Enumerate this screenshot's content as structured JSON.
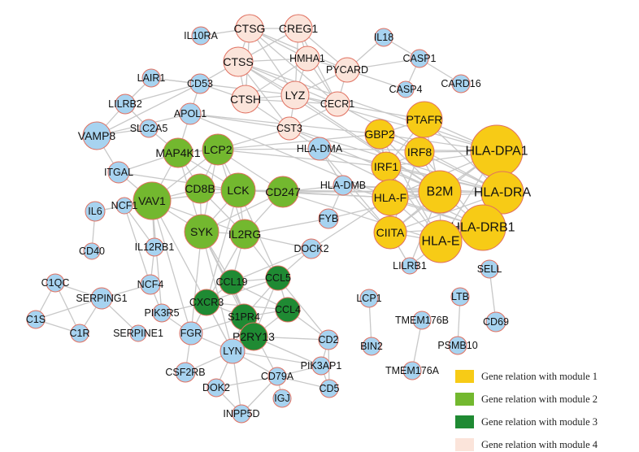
{
  "colors": {
    "module1": "#f7cb16",
    "module2": "#73b82f",
    "module3": "#1f8a33",
    "module4": "#fbe4da",
    "other": "#a7d3f0",
    "outline": "#e07060",
    "edge": "#c8c8c8"
  },
  "legend": [
    {
      "module": "module1",
      "label": "Gene  relation  with  module 1"
    },
    {
      "module": "module2",
      "label": "Gene  relation  with  module 2"
    },
    {
      "module": "module3",
      "label": "Gene  relation  with  module 3"
    },
    {
      "module": "module4",
      "label": "Gene  relation  with  module 4"
    }
  ],
  "nodes": [
    {
      "id": "CTSG",
      "module": "module4"
    },
    {
      "id": "CREG1",
      "module": "module4"
    },
    {
      "id": "CTSS",
      "module": "module4"
    },
    {
      "id": "HMHA1",
      "module": "module4"
    },
    {
      "id": "PYCARD",
      "module": "module4"
    },
    {
      "id": "CTSH",
      "module": "module4"
    },
    {
      "id": "LYZ",
      "module": "module4"
    },
    {
      "id": "CECR1",
      "module": "module4"
    },
    {
      "id": "CST3",
      "module": "module4"
    },
    {
      "id": "PTAFR",
      "module": "module1"
    },
    {
      "id": "GBP2",
      "module": "module1"
    },
    {
      "id": "IRF8",
      "module": "module1"
    },
    {
      "id": "HLA-DPA1",
      "module": "module1"
    },
    {
      "id": "IRF1",
      "module": "module1"
    },
    {
      "id": "B2M",
      "module": "module1"
    },
    {
      "id": "HLA-DRA",
      "module": "module1"
    },
    {
      "id": "HLA-F",
      "module": "module1"
    },
    {
      "id": "HLA-DRB1",
      "module": "module1"
    },
    {
      "id": "CIITA",
      "module": "module1"
    },
    {
      "id": "HLA-E",
      "module": "module1"
    },
    {
      "id": "MAP4K1",
      "module": "module2"
    },
    {
      "id": "LCP2",
      "module": "module2"
    },
    {
      "id": "CD8B",
      "module": "module2"
    },
    {
      "id": "LCK",
      "module": "module2"
    },
    {
      "id": "CD247",
      "module": "module2"
    },
    {
      "id": "VAV1",
      "module": "module2"
    },
    {
      "id": "SYK",
      "module": "module2"
    },
    {
      "id": "IL2RG",
      "module": "module2"
    },
    {
      "id": "CCL19",
      "module": "module3"
    },
    {
      "id": "CCL5",
      "module": "module3"
    },
    {
      "id": "CXCR3",
      "module": "module3"
    },
    {
      "id": "S1PR4",
      "module": "module3"
    },
    {
      "id": "CCL4",
      "module": "module3"
    },
    {
      "id": "P2RY13",
      "module": "module3"
    },
    {
      "id": "IL10RA",
      "module": "other"
    },
    {
      "id": "IL18",
      "module": "other"
    },
    {
      "id": "CASP1",
      "module": "other"
    },
    {
      "id": "CASP4",
      "module": "other"
    },
    {
      "id": "CARD16",
      "module": "other"
    },
    {
      "id": "LAIR1",
      "module": "other"
    },
    {
      "id": "CD53",
      "module": "other"
    },
    {
      "id": "LILRB2",
      "module": "other"
    },
    {
      "id": "APOL1",
      "module": "other"
    },
    {
      "id": "VAMP8",
      "module": "other"
    },
    {
      "id": "SLC2A5",
      "module": "other"
    },
    {
      "id": "ITGAL",
      "module": "other"
    },
    {
      "id": "HLA-DMA",
      "module": "other"
    },
    {
      "id": "HLA-DMB",
      "module": "other"
    },
    {
      "id": "IL6",
      "module": "other"
    },
    {
      "id": "NCF1",
      "module": "other"
    },
    {
      "id": "FYB",
      "module": "other"
    },
    {
      "id": "CD40",
      "module": "other"
    },
    {
      "id": "IL12RB1",
      "module": "other"
    },
    {
      "id": "DOCK2",
      "module": "other"
    },
    {
      "id": "LILRB1",
      "module": "other"
    },
    {
      "id": "SELL",
      "module": "other"
    },
    {
      "id": "C1QC",
      "module": "other"
    },
    {
      "id": "SERPING1",
      "module": "other"
    },
    {
      "id": "NCF4",
      "module": "other"
    },
    {
      "id": "PIK3R5",
      "module": "other"
    },
    {
      "id": "C1S",
      "module": "other"
    },
    {
      "id": "C1R",
      "module": "other"
    },
    {
      "id": "SERPINE1",
      "module": "other"
    },
    {
      "id": "FGR",
      "module": "other"
    },
    {
      "id": "LCP1",
      "module": "other"
    },
    {
      "id": "LTB",
      "module": "other"
    },
    {
      "id": "TMEM176B",
      "module": "other"
    },
    {
      "id": "CD69",
      "module": "other"
    },
    {
      "id": "BIN2",
      "module": "other"
    },
    {
      "id": "PSMB10",
      "module": "other"
    },
    {
      "id": "TMEM176A",
      "module": "other"
    },
    {
      "id": "LYN",
      "module": "other"
    },
    {
      "id": "CD2",
      "module": "other"
    },
    {
      "id": "CSF2RB",
      "module": "other"
    },
    {
      "id": "CD79A",
      "module": "other"
    },
    {
      "id": "PIK3AP1",
      "module": "other"
    },
    {
      "id": "CD5",
      "module": "other"
    },
    {
      "id": "DOK2",
      "module": "other"
    },
    {
      "id": "IGJ",
      "module": "other"
    },
    {
      "id": "INPP5D",
      "module": "other"
    }
  ],
  "edges": [
    [
      "CTSG",
      "CTSS"
    ],
    [
      "CTSG",
      "HMHA1"
    ],
    [
      "CTSG",
      "CREG1"
    ],
    [
      "CTSG",
      "LYZ"
    ],
    [
      "CTSG",
      "CECR1"
    ],
    [
      "CTSG",
      "CTSH"
    ],
    [
      "CTSG",
      "IL10RA"
    ],
    [
      "CTSG",
      "PYCARD"
    ],
    [
      "CREG1",
      "HMHA1"
    ],
    [
      "CREG1",
      "PYCARD"
    ],
    [
      "CREG1",
      "CTSS"
    ],
    [
      "CREG1",
      "LYZ"
    ],
    [
      "CREG1",
      "CECR1"
    ],
    [
      "CTSS",
      "HMHA1"
    ],
    [
      "CTSS",
      "CTSH"
    ],
    [
      "CTSS",
      "LYZ"
    ],
    [
      "CTSS",
      "CECR1"
    ],
    [
      "CTSS",
      "CD53"
    ],
    [
      "CTSS",
      "CST3"
    ],
    [
      "CTSS",
      "HLA-DPA1"
    ],
    [
      "CTSS",
      "B2M"
    ],
    [
      "HMHA1",
      "LYZ"
    ],
    [
      "HMHA1",
      "CTSH"
    ],
    [
      "HMHA1",
      "PYCARD"
    ],
    [
      "HMHA1",
      "CECR1"
    ],
    [
      "PYCARD",
      "CECR1"
    ],
    [
      "PYCARD",
      "CASP1"
    ],
    [
      "PYCARD",
      "CASP4"
    ],
    [
      "PYCARD",
      "IL18"
    ],
    [
      "PYCARD",
      "LYZ"
    ],
    [
      "IL18",
      "CASP1"
    ],
    [
      "CASP1",
      "CASP4"
    ],
    [
      "CASP1",
      "CARD16"
    ],
    [
      "CTSH",
      "LYZ"
    ],
    [
      "CTSH",
      "CECR1"
    ],
    [
      "CTSH",
      "CST3"
    ],
    [
      "CTSH",
      "CD53"
    ],
    [
      "LYZ",
      "CECR1"
    ],
    [
      "LYZ",
      "CST3"
    ],
    [
      "LYZ",
      "HLA-DPA1"
    ],
    [
      "LYZ",
      "B2M"
    ],
    [
      "LYZ",
      "LAIR1"
    ],
    [
      "CECR1",
      "PTAFR"
    ],
    [
      "CECR1",
      "HLA-DRA"
    ],
    [
      "CECR1",
      "CST3"
    ],
    [
      "CST3",
      "APOL1"
    ],
    [
      "CST3",
      "HLA-DRA"
    ],
    [
      "CST3",
      "B2M"
    ],
    [
      "CST3",
      "LCP2"
    ],
    [
      "CST3",
      "HLA-DMA"
    ],
    [
      "LAIR1",
      "CD53"
    ],
    [
      "LAIR1",
      "LILRB2"
    ],
    [
      "CD53",
      "LILRB2"
    ],
    [
      "CD53",
      "APOL1"
    ],
    [
      "CD53",
      "VAMP8"
    ],
    [
      "LILRB2",
      "VAMP8"
    ],
    [
      "LILRB2",
      "SLC2A5"
    ],
    [
      "VAMP8",
      "SLC2A5"
    ],
    [
      "VAMP8",
      "ITGAL"
    ],
    [
      "VAMP8",
      "APOL1"
    ],
    [
      "SLC2A5",
      "MAP4K1"
    ],
    [
      "APOL1",
      "HLA-F"
    ],
    [
      "APOL1",
      "MAP4K1"
    ],
    [
      "APOL1",
      "GBP2"
    ],
    [
      "ITGAL",
      "MAP4K1"
    ],
    [
      "ITGAL",
      "VAV1"
    ],
    [
      "ITGAL",
      "LCK"
    ],
    [
      "MAP4K1",
      "LCP2"
    ],
    [
      "MAP4K1",
      "VAV1"
    ],
    [
      "MAP4K1",
      "LCK"
    ],
    [
      "MAP4K1",
      "CD8B"
    ],
    [
      "MAP4K1",
      "SYK"
    ],
    [
      "LCP2",
      "LCK"
    ],
    [
      "LCP2",
      "CD8B"
    ],
    [
      "LCP2",
      "CD247"
    ],
    [
      "LCP2",
      "VAV1"
    ],
    [
      "LCP2",
      "SYK"
    ],
    [
      "LCP2",
      "IL2RG"
    ],
    [
      "LCP2",
      "GBP2"
    ],
    [
      "LCP2",
      "HLA-DMA"
    ],
    [
      "LCP2",
      "IRF1"
    ],
    [
      "CD8B",
      "LCK"
    ],
    [
      "CD8B",
      "VAV1"
    ],
    [
      "CD8B",
      "CD247"
    ],
    [
      "CD8B",
      "SYK"
    ],
    [
      "CD8B",
      "IL2RG"
    ],
    [
      "LCK",
      "CD247"
    ],
    [
      "LCK",
      "VAV1"
    ],
    [
      "LCK",
      "SYK"
    ],
    [
      "LCK",
      "IL2RG"
    ],
    [
      "LCK",
      "HLA-F"
    ],
    [
      "LCK",
      "B2M"
    ],
    [
      "LCK",
      "CCL5"
    ],
    [
      "LCK",
      "CXCR3"
    ],
    [
      "CD247",
      "IL2RG"
    ],
    [
      "CD247",
      "SYK"
    ],
    [
      "CD247",
      "HLA-DMB"
    ],
    [
      "CD247",
      "HLA-F"
    ],
    [
      "CD247",
      "B2M"
    ],
    [
      "VAV1",
      "SYK"
    ],
    [
      "VAV1",
      "IL2RG"
    ],
    [
      "VAV1",
      "IL6"
    ],
    [
      "VAV1",
      "NCF1"
    ],
    [
      "VAV1",
      "IL12RB1"
    ],
    [
      "VAV1",
      "PIK3R5"
    ],
    [
      "VAV1",
      "FGR"
    ],
    [
      "VAV1",
      "LYN"
    ],
    [
      "SYK",
      "IL2RG"
    ],
    [
      "SYK",
      "LYN"
    ],
    [
      "SYK",
      "FGR"
    ],
    [
      "SYK",
      "CCL19"
    ],
    [
      "SYK",
      "S1PR4"
    ],
    [
      "SYK",
      "CD79A"
    ],
    [
      "IL2RG",
      "CCL19"
    ],
    [
      "IL2RG",
      "CCL5"
    ],
    [
      "IL2RG",
      "CXCR3"
    ],
    [
      "IL2RG",
      "DOCK2"
    ],
    [
      "IL6",
      "NCF1"
    ],
    [
      "IL6",
      "CD40"
    ],
    [
      "NCF1",
      "NCF4"
    ],
    [
      "NCF1",
      "IL12RB1"
    ],
    [
      "HLA-DMA",
      "HLA-DMB"
    ],
    [
      "HLA-DMA",
      "HLA-DRA"
    ],
    [
      "HLA-DMA",
      "HLA-DPA1"
    ],
    [
      "HLA-DMA",
      "CIITA"
    ],
    [
      "HLA-DMA",
      "HLA-DRB1"
    ],
    [
      "HLA-DMB",
      "HLA-DRA"
    ],
    [
      "HLA-DMB",
      "CIITA"
    ],
    [
      "HLA-DMB",
      "HLA-DRB1"
    ],
    [
      "HLA-DMB",
      "B2M"
    ],
    [
      "PTAFR",
      "GBP2"
    ],
    [
      "PTAFR",
      "IRF8"
    ],
    [
      "PTAFR",
      "HLA-DPA1"
    ],
    [
      "PTAFR",
      "B2M"
    ],
    [
      "PTAFR",
      "HLA-DRA"
    ],
    [
      "PTAFR",
      "IRF1"
    ],
    [
      "GBP2",
      "IRF8"
    ],
    [
      "GBP2",
      "IRF1"
    ],
    [
      "GBP2",
      "B2M"
    ],
    [
      "GBP2",
      "HLA-F"
    ],
    [
      "GBP2",
      "HLA-E"
    ],
    [
      "GBP2",
      "HLA-DPA1"
    ],
    [
      "IRF8",
      "IRF1"
    ],
    [
      "IRF8",
      "B2M"
    ],
    [
      "IRF8",
      "HLA-DPA1"
    ],
    [
      "IRF8",
      "HLA-DRA"
    ],
    [
      "IRF8",
      "CIITA"
    ],
    [
      "IRF8",
      "HLA-DRB1"
    ],
    [
      "HLA-DPA1",
      "B2M"
    ],
    [
      "HLA-DPA1",
      "HLA-DRA"
    ],
    [
      "HLA-DPA1",
      "HLA-DRB1"
    ],
    [
      "HLA-DPA1",
      "HLA-E"
    ],
    [
      "HLA-DPA1",
      "CIITA"
    ],
    [
      "HLA-DPA1",
      "HLA-F"
    ],
    [
      "HLA-DPA1",
      "IRF1"
    ],
    [
      "IRF1",
      "B2M"
    ],
    [
      "IRF1",
      "HLA-F"
    ],
    [
      "IRF1",
      "HLA-E"
    ],
    [
      "IRF1",
      "CIITA"
    ],
    [
      "IRF1",
      "HLA-DRA"
    ],
    [
      "B2M",
      "HLA-DRA"
    ],
    [
      "B2M",
      "HLA-F"
    ],
    [
      "B2M",
      "HLA-DRB1"
    ],
    [
      "B2M",
      "CIITA"
    ],
    [
      "B2M",
      "HLA-E"
    ],
    [
      "B2M",
      "LILRB1"
    ],
    [
      "B2M",
      "FYB"
    ],
    [
      "HLA-DRA",
      "HLA-DRB1"
    ],
    [
      "HLA-DRA",
      "HLA-E"
    ],
    [
      "HLA-DRA",
      "CIITA"
    ],
    [
      "HLA-DRA",
      "HLA-F"
    ],
    [
      "HLA-F",
      "HLA-E"
    ],
    [
      "HLA-F",
      "CIITA"
    ],
    [
      "HLA-F",
      "HLA-DRB1"
    ],
    [
      "HLA-DRB1",
      "HLA-E"
    ],
    [
      "HLA-DRB1",
      "CIITA"
    ],
    [
      "CIITA",
      "HLA-E"
    ],
    [
      "CIITA",
      "LILRB1"
    ],
    [
      "HLA-E",
      "LILRB1"
    ],
    [
      "DOCK2",
      "CCL5"
    ],
    [
      "DOCK2",
      "HLA-F"
    ],
    [
      "DOCK2",
      "CCL19"
    ],
    [
      "FYB",
      "HLA-DMB"
    ],
    [
      "FYB",
      "IL2RG"
    ],
    [
      "CCL19",
      "CCL5"
    ],
    [
      "CCL19",
      "CXCR3"
    ],
    [
      "CCL19",
      "S1PR4"
    ],
    [
      "CCL19",
      "CCL4"
    ],
    [
      "CCL19",
      "P2RY13"
    ],
    [
      "CCL5",
      "CXCR3"
    ],
    [
      "CCL5",
      "S1PR4"
    ],
    [
      "CCL5",
      "CCL4"
    ],
    [
      "CCL5",
      "P2RY13"
    ],
    [
      "CCL5",
      "CD2"
    ],
    [
      "CXCR3",
      "S1PR4"
    ],
    [
      "CXCR3",
      "CCL4"
    ],
    [
      "CXCR3",
      "FGR"
    ],
    [
      "CXCR3",
      "PIK3R5"
    ],
    [
      "CXCR3",
      "LYN"
    ],
    [
      "S1PR4",
      "CCL4"
    ],
    [
      "S1PR4",
      "P2RY13"
    ],
    [
      "S1PR4",
      "LYN"
    ],
    [
      "S1PR4",
      "FGR"
    ],
    [
      "CCL4",
      "P2RY13"
    ],
    [
      "CCL4",
      "CD2"
    ],
    [
      "P2RY13",
      "LYN"
    ],
    [
      "P2RY13",
      "PIK3AP1"
    ],
    [
      "P2RY13",
      "CD2"
    ],
    [
      "C1QC",
      "C1S"
    ],
    [
      "C1QC",
      "C1R"
    ],
    [
      "C1QC",
      "SERPING1"
    ],
    [
      "C1S",
      "C1R"
    ],
    [
      "C1S",
      "SERPING1"
    ],
    [
      "C1R",
      "SERPING1"
    ],
    [
      "SERPING1",
      "SERPINE1"
    ],
    [
      "SERPING1",
      "NCF4"
    ],
    [
      "NCF4",
      "PIK3R5"
    ],
    [
      "NCF4",
      "IL12RB1"
    ],
    [
      "PIK3R5",
      "FGR"
    ],
    [
      "FGR",
      "LYN"
    ],
    [
      "FGR",
      "CSF2RB"
    ],
    [
      "LYN",
      "CSF2RB"
    ],
    [
      "LYN",
      "DOK2"
    ],
    [
      "LYN",
      "CD79A"
    ],
    [
      "LYN",
      "INPP5D"
    ],
    [
      "LYN",
      "PIK3AP1"
    ],
    [
      "CD79A",
      "IGJ"
    ],
    [
      "CD79A",
      "DOK2"
    ],
    [
      "CD79A",
      "INPP5D"
    ],
    [
      "CD79A",
      "CD5"
    ],
    [
      "CD79A",
      "PIK3AP1"
    ],
    [
      "DOK2",
      "INPP5D"
    ],
    [
      "PIK3AP1",
      "CD5"
    ],
    [
      "CD2",
      "CD5"
    ],
    [
      "CD2",
      "PIK3AP1"
    ],
    [
      "LCP1",
      "BIN2"
    ],
    [
      "TMEM176B",
      "TMEM176A"
    ],
    [
      "LTB",
      "PSMB10"
    ],
    [
      "SELL",
      "CD69"
    ],
    [
      "HLA-E",
      "CD247"
    ],
    [
      "HLA-F",
      "CD8B"
    ]
  ]
}
